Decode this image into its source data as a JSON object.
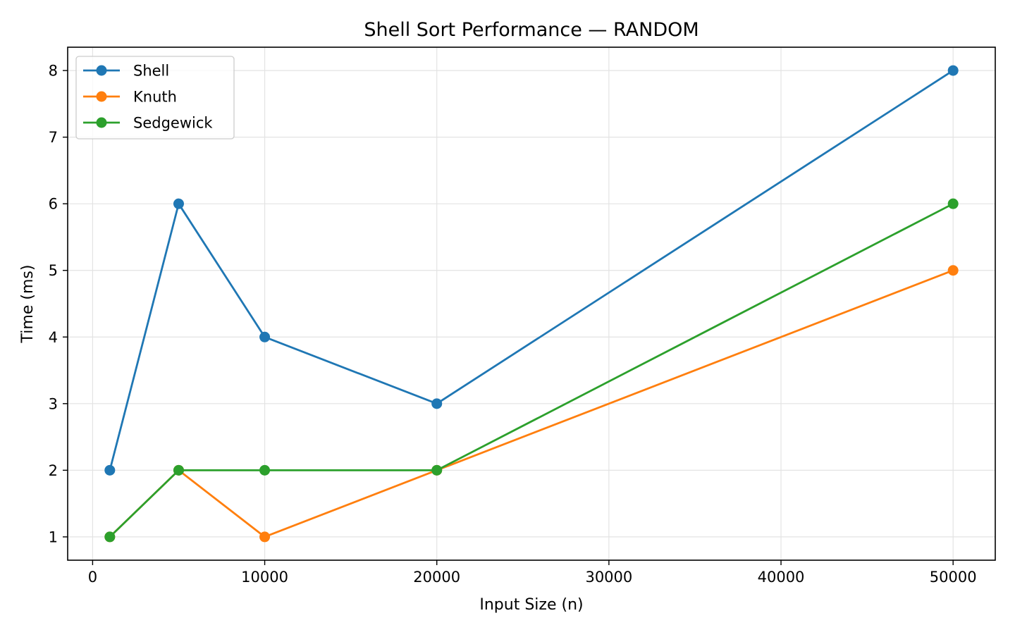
{
  "chart_data": {
    "type": "line",
    "title": "Shell Sort Performance — RANDOM",
    "xlabel": "Input Size (n)",
    "ylabel": "Time (ms)",
    "x": [
      1000,
      5000,
      10000,
      20000,
      50000
    ],
    "series": [
      {
        "name": "Shell",
        "color": "#1f77b4",
        "values": [
          2,
          6,
          4,
          3,
          8
        ]
      },
      {
        "name": "Knuth",
        "color": "#ff7f0e",
        "values": [
          1,
          2,
          1,
          2,
          5
        ]
      },
      {
        "name": "Sedgewick",
        "color": "#2ca02c",
        "values": [
          1,
          2,
          2,
          2,
          6
        ]
      }
    ],
    "xlim": [
      -1450,
      52450
    ],
    "ylim": [
      0.65,
      8.35
    ],
    "xticks": [
      0,
      10000,
      20000,
      30000,
      40000,
      50000
    ],
    "yticks": [
      1,
      2,
      3,
      4,
      5,
      6,
      7,
      8
    ],
    "grid": true,
    "legend_position": "upper-left",
    "marker": "circle"
  }
}
